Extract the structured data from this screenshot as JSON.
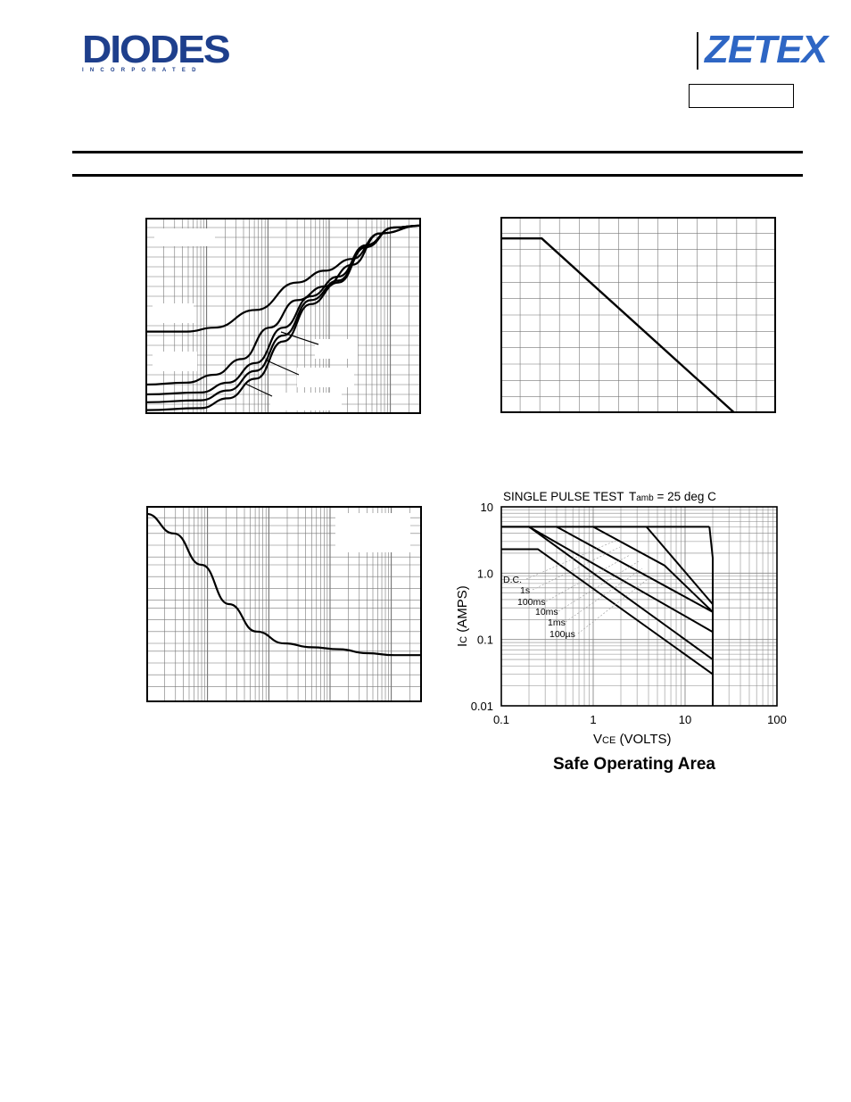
{
  "header": {
    "diodes_logo_text": "DIODES",
    "diodes_logo_subtext": "INCORPORATED",
    "zetex_logo_text": "ZETEX",
    "part_number": ""
  },
  "colors": {
    "diodes_blue": "#1e3f8c",
    "zetex_blue": "#2e66c4",
    "ink": "#000000"
  },
  "chart_data": [
    {
      "type": "line",
      "title": "",
      "xlabel": "",
      "ylabel": "",
      "xscale": "log",
      "grid": true,
      "series": [
        {
          "values": [
            [
              0,
              0.58
            ],
            [
              0.15,
              0.58
            ],
            [
              0.25,
              0.56
            ],
            [
              0.4,
              0.47
            ],
            [
              0.55,
              0.33
            ],
            [
              0.65,
              0.27
            ],
            [
              0.75,
              0.21
            ],
            [
              0.85,
              0.08
            ],
            [
              1,
              0.04
            ]
          ]
        },
        {
          "values": [
            [
              0,
              0.85
            ],
            [
              0.15,
              0.84
            ],
            [
              0.25,
              0.8
            ],
            [
              0.35,
              0.72
            ],
            [
              0.45,
              0.56
            ],
            [
              0.55,
              0.42
            ],
            [
              0.65,
              0.35
            ],
            [
              0.75,
              0.24
            ],
            [
              0.85,
              0.08
            ],
            [
              1,
              0.04
            ]
          ]
        },
        {
          "values": [
            [
              0,
              0.9
            ],
            [
              0.2,
              0.89
            ],
            [
              0.3,
              0.84
            ],
            [
              0.4,
              0.74
            ],
            [
              0.5,
              0.56
            ],
            [
              0.6,
              0.4
            ],
            [
              0.7,
              0.3
            ],
            [
              0.8,
              0.14
            ],
            [
              0.9,
              0.05
            ],
            [
              1,
              0.04
            ]
          ]
        },
        {
          "values": [
            [
              0,
              0.94
            ],
            [
              0.2,
              0.93
            ],
            [
              0.3,
              0.88
            ],
            [
              0.4,
              0.78
            ],
            [
              0.5,
              0.6
            ],
            [
              0.6,
              0.42
            ],
            [
              0.7,
              0.32
            ],
            [
              0.8,
              0.14
            ],
            [
              0.9,
              0.05
            ],
            [
              1,
              0.04
            ]
          ]
        },
        {
          "values": [
            [
              0,
              0.98
            ],
            [
              0.2,
              0.97
            ],
            [
              0.3,
              0.92
            ],
            [
              0.4,
              0.82
            ],
            [
              0.5,
              0.63
            ],
            [
              0.6,
              0.44
            ],
            [
              0.7,
              0.33
            ],
            [
              0.8,
              0.15
            ],
            [
              0.9,
              0.05
            ],
            [
              1,
              0.04
            ]
          ]
        }
      ]
    },
    {
      "type": "line",
      "title": "",
      "xlabel": "",
      "ylabel": "",
      "grid": true,
      "series": [
        {
          "values": [
            [
              0,
              0.11
            ],
            [
              0.15,
              0.11
            ],
            [
              0.85,
              1.0
            ]
          ]
        }
      ]
    },
    {
      "type": "line",
      "title": "",
      "xlabel": "",
      "ylabel": "",
      "xscale": "log",
      "grid": true,
      "series": [
        {
          "values": [
            [
              0,
              0.04
            ],
            [
              0.1,
              0.14
            ],
            [
              0.2,
              0.3
            ],
            [
              0.3,
              0.5
            ],
            [
              0.4,
              0.64
            ],
            [
              0.5,
              0.7
            ],
            [
              0.6,
              0.72
            ],
            [
              0.7,
              0.73
            ],
            [
              0.8,
              0.75
            ],
            [
              0.9,
              0.76
            ],
            [
              1,
              0.76
            ]
          ]
        }
      ]
    },
    {
      "type": "line",
      "title": "Safe Operating Area",
      "annotation": "SINGLE PULSE TEST",
      "condition_prefix": "T",
      "condition_subscript": "amb",
      "condition_rest": " = 25 deg C",
      "xlabel_prefix": "V",
      "xlabel_subscript": "CE",
      "xlabel_rest": " (VOLTS)",
      "ylabel_prefix": "I",
      "ylabel_subscript": "C",
      "ylabel_rest": " (AMPS)",
      "xscale": "log",
      "yscale": "log",
      "xlim": [
        0.1,
        100
      ],
      "ylim": [
        0.01,
        10
      ],
      "x_ticks": [
        "0.1",
        "1",
        "10",
        "100"
      ],
      "y_ticks": [
        "0.01",
        "0.1",
        "1.0",
        "10"
      ],
      "grid": true,
      "series": [
        {
          "name": "D.C.",
          "values": [
            [
              0.1,
              2.3
            ],
            [
              0.25,
              2.3
            ],
            [
              20,
              0.03
            ]
          ]
        },
        {
          "name": "1s",
          "values": [
            [
              0.1,
              5
            ],
            [
              0.2,
              5
            ],
            [
              20,
              0.05
            ]
          ]
        },
        {
          "name": "100ms",
          "values": [
            [
              0.2,
              5
            ],
            [
              20,
              0.13
            ]
          ]
        },
        {
          "name": "10ms",
          "values": [
            [
              0.4,
              5
            ],
            [
              20,
              0.26
            ]
          ]
        },
        {
          "name": "1ms",
          "values": [
            [
              1,
              5
            ],
            [
              6,
              1.3
            ],
            [
              20,
              0.26
            ]
          ]
        },
        {
          "name": "100µs",
          "values": [
            [
              3.8,
              5
            ],
            [
              20,
              0.34
            ]
          ]
        }
      ],
      "limits": {
        "ic_max": 5,
        "vce_max": 20
      }
    }
  ]
}
